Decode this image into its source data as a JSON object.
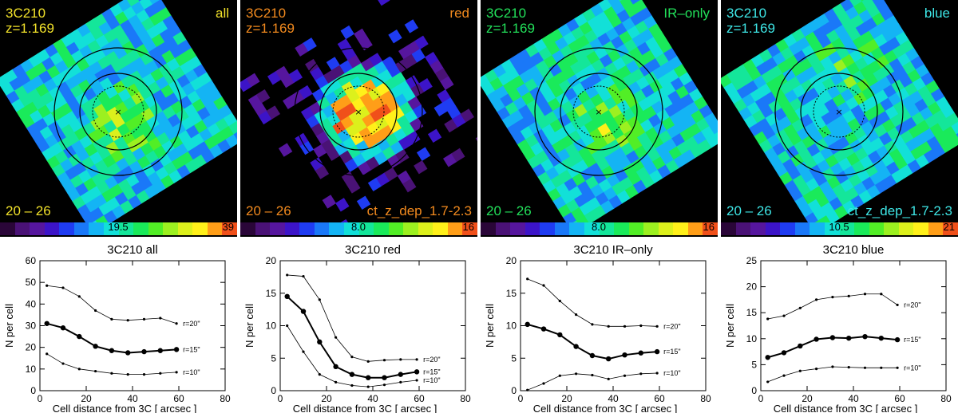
{
  "maps": [
    {
      "id": "all",
      "source": "3C210",
      "redshift": "z=1.169",
      "sample": "all",
      "mag_range": "20 – 26",
      "cut_label": "",
      "cbar_mid": "19.5",
      "cbar_max": "39",
      "label_color": "#f2e22a"
    },
    {
      "id": "red",
      "source": "3C210",
      "redshift": "z=1.169",
      "sample": "red",
      "mag_range": "20 – 26",
      "cut_label": "ct_z_dep_1.7-2.3",
      "cbar_mid": "8.0",
      "cbar_max": "16",
      "label_color": "#f28a1e"
    },
    {
      "id": "ir",
      "source": "3C210",
      "redshift": "z=1.169",
      "sample": "IR–only",
      "mag_range": "20 – 26",
      "cut_label": "",
      "cbar_mid": "8.0",
      "cbar_max": "16",
      "label_color": "#22e05a"
    },
    {
      "id": "blue",
      "source": "3C210",
      "redshift": "z=1.169",
      "sample": "blue",
      "mag_range": "20 – 26",
      "cut_label": "ct_z_dep_1.7-2.3",
      "cbar_mid": "10.5",
      "cbar_max": "21",
      "label_color": "#3ee6e6"
    }
  ],
  "colormap": [
    "#2a0638",
    "#4a1276",
    "#56169e",
    "#3c14c8",
    "#1f3cf2",
    "#1a78f8",
    "#14b4f4",
    "#12e0d8",
    "#14e69a",
    "#1aea5a",
    "#52ee26",
    "#9cf020",
    "#dcf01c",
    "#fff01a",
    "#ff9e18",
    "#f0501a"
  ],
  "chart_data": [
    {
      "type": "line",
      "title": "3C210  all",
      "xlabel": "Cell distance from 3C  [ arcsec ]",
      "ylabel": "N per cell",
      "xlim": [
        0,
        80
      ],
      "ylim": [
        0,
        60
      ],
      "xticks": [
        0,
        20,
        40,
        60,
        80
      ],
      "yticks": [
        0,
        10,
        20,
        30,
        40,
        50,
        60
      ],
      "x": [
        3,
        10,
        17,
        24,
        31,
        38,
        45,
        52,
        59
      ],
      "series": [
        {
          "name": "r=20\"",
          "values": [
            48.5,
            47.5,
            43.5,
            37,
            33,
            32.5,
            33,
            33.5,
            31
          ]
        },
        {
          "name": "r=15\"",
          "values": [
            31,
            29,
            25,
            20.5,
            18.5,
            17.5,
            18,
            18.5,
            19
          ]
        },
        {
          "name": "r=10\"",
          "values": [
            17,
            12.5,
            10,
            9,
            8,
            7.5,
            7.5,
            8,
            8.5
          ]
        }
      ]
    },
    {
      "type": "line",
      "title": "3C210  red",
      "xlabel": "Cell distance from 3C  [ arcsec ]",
      "ylabel": "N per cell",
      "xlim": [
        0,
        80
      ],
      "ylim": [
        0,
        20
      ],
      "xticks": [
        0,
        20,
        40,
        60,
        80
      ],
      "yticks": [
        0,
        5,
        10,
        15,
        20
      ],
      "x": [
        3,
        10,
        17,
        24,
        31,
        38,
        45,
        52,
        59
      ],
      "series": [
        {
          "name": "r=20\"",
          "values": [
            17.8,
            17.6,
            14,
            8.2,
            5.2,
            4.5,
            4.7,
            4.8,
            4.8
          ]
        },
        {
          "name": "r=15\"",
          "values": [
            14.5,
            12.2,
            7.5,
            3.7,
            2.5,
            2,
            2,
            2.5,
            2.9
          ]
        },
        {
          "name": "r=10\"",
          "values": [
            10,
            6,
            2.5,
            1.3,
            0.8,
            0.6,
            0.9,
            1.3,
            1.6
          ]
        }
      ]
    },
    {
      "type": "line",
      "title": "3C210  IR–only",
      "xlabel": "Cell distance from 3C  [ arcsec ]",
      "ylabel": "N per cell",
      "xlim": [
        0,
        80
      ],
      "ylim": [
        0,
        20
      ],
      "xticks": [
        0,
        20,
        40,
        60,
        80
      ],
      "yticks": [
        0,
        5,
        10,
        15,
        20
      ],
      "x": [
        3,
        10,
        17,
        24,
        31,
        38,
        45,
        52,
        59
      ],
      "series": [
        {
          "name": "r=20\"",
          "values": [
            17.2,
            16.2,
            13.8,
            11.7,
            10.2,
            9.9,
            9.9,
            10,
            9.9
          ]
        },
        {
          "name": "r=15\"",
          "values": [
            10.2,
            9.5,
            8.6,
            6.8,
            5.4,
            4.9,
            5.5,
            5.8,
            6
          ]
        },
        {
          "name": "r=10\"",
          "values": [
            0.1,
            1.1,
            2.3,
            2.6,
            2.4,
            1.8,
            2.3,
            2.6,
            2.7
          ]
        }
      ]
    },
    {
      "type": "line",
      "title": "3C210  blue",
      "xlabel": "Cell distance from 3C  [ arcsec ]",
      "ylabel": "N per cell",
      "xlim": [
        0,
        80
      ],
      "ylim": [
        0,
        25
      ],
      "xticks": [
        0,
        20,
        40,
        60,
        80
      ],
      "yticks": [
        0,
        5,
        10,
        15,
        20,
        25
      ],
      "x": [
        3,
        10,
        17,
        24,
        31,
        38,
        45,
        52,
        59
      ],
      "series": [
        {
          "name": "r=20\"",
          "values": [
            13.8,
            14.4,
            15.9,
            17.5,
            18,
            18.2,
            18.6,
            18.6,
            16.5
          ]
        },
        {
          "name": "r=15\"",
          "values": [
            6.4,
            7.3,
            8.6,
            9.9,
            10.2,
            10.1,
            10.4,
            10.1,
            9.8
          ]
        },
        {
          "name": "r=10\"",
          "values": [
            1.7,
            2.9,
            3.8,
            4.2,
            4.6,
            4.5,
            4.4,
            4.4,
            4.4
          ]
        }
      ]
    }
  ]
}
